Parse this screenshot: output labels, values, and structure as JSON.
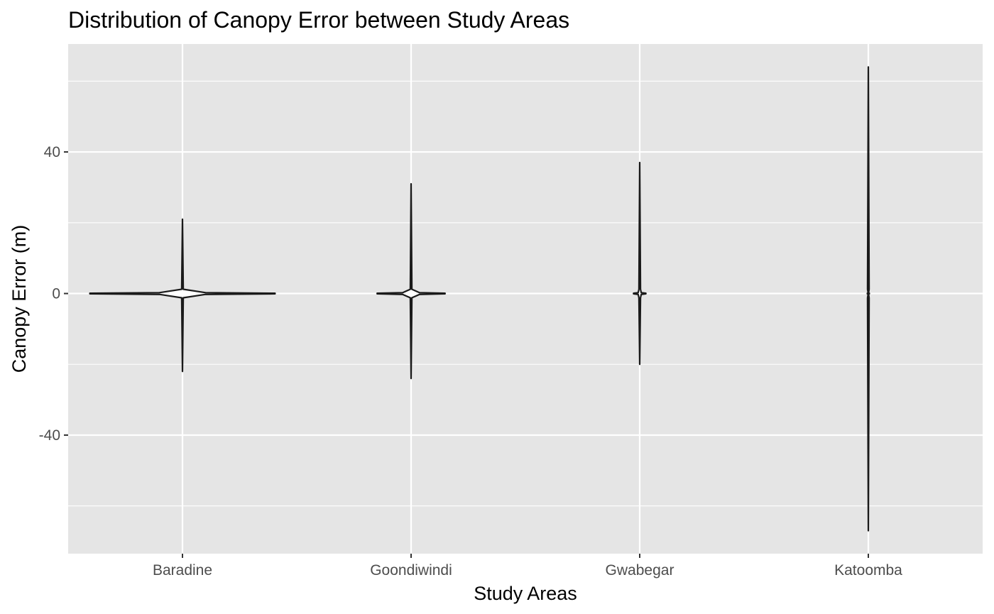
{
  "chart_data": {
    "type": "violin",
    "title": "Distribution of Canopy Error between Study Areas",
    "xlabel": "Study Areas",
    "ylabel": "Canopy Error (m)",
    "categories": [
      "Baradine",
      "Goondiwindi",
      "Gwabegar",
      "Katoomba"
    ],
    "ylim": [
      -73.5,
      70.5
    ],
    "yticks": [
      -40,
      0,
      40
    ],
    "ytick_labels": [
      "-40",
      "0",
      "40"
    ],
    "grid": true,
    "legend": "none",
    "violins": [
      {
        "category": "Baradine",
        "min": -22,
        "max": 21,
        "peak_value": 0,
        "relative_peak_width": 0.9
      },
      {
        "category": "Goondiwindi",
        "min": -24,
        "max": 31,
        "peak_value": 0,
        "relative_peak_width": 0.33
      },
      {
        "category": "Gwabegar",
        "min": -20,
        "max": 37,
        "peak_value": 0,
        "relative_peak_width": 0.06
      },
      {
        "category": "Katoomba",
        "min": -67,
        "max": 64,
        "peak_value": 0,
        "relative_peak_width": 0.004
      }
    ],
    "colors": {
      "panel_background": "#e5e5e5",
      "grid": "#ffffff",
      "violin_outline": "#1a1a1a",
      "violin_fill": "#ffffff"
    }
  }
}
